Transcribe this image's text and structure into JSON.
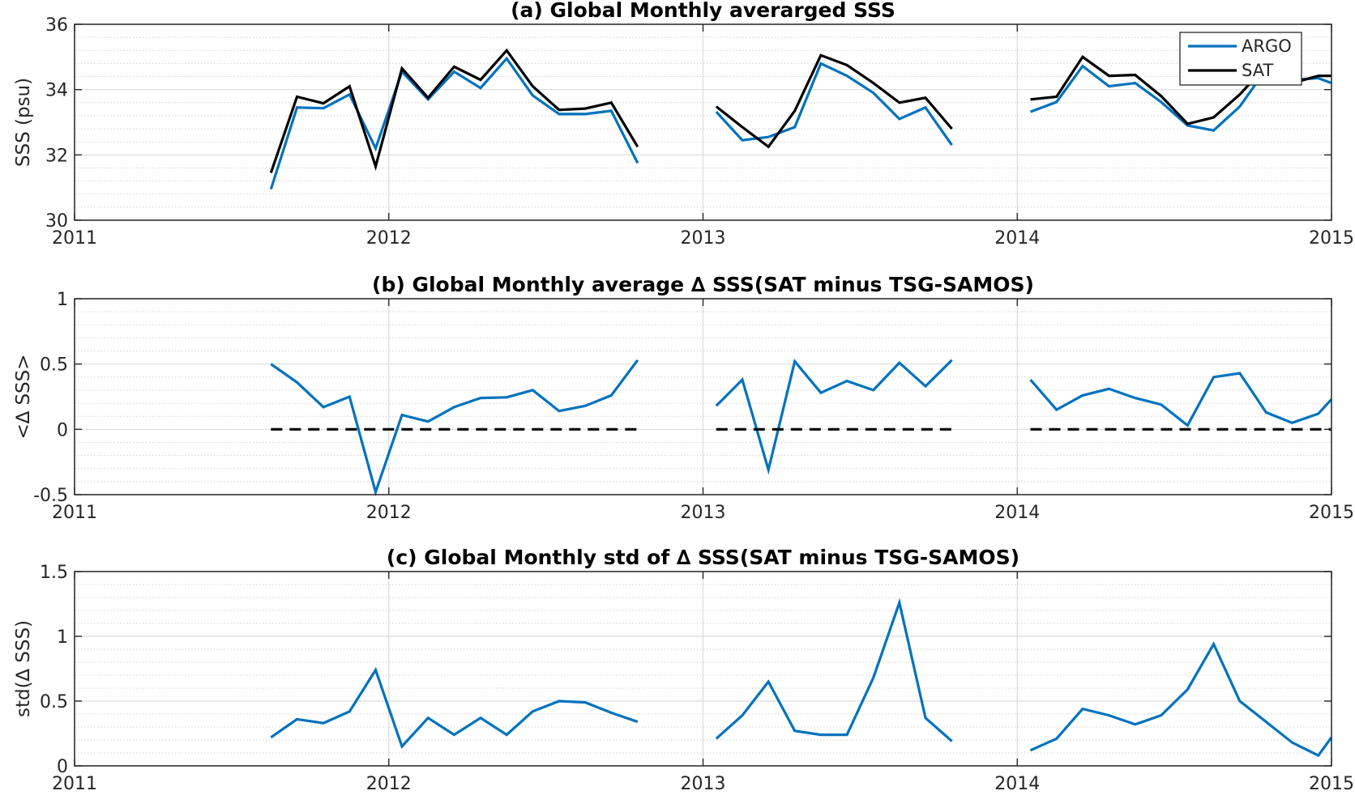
{
  "chart_data": [
    {
      "type": "line",
      "title": "(a) Global Monthly averarged SSS",
      "xlabel": "",
      "ylabel": "SSS (psu)",
      "xlim": [
        2011,
        2015
      ],
      "ylim": [
        30,
        36
      ],
      "xticks": [
        2011,
        2012,
        2013,
        2014,
        2015
      ],
      "xtick_labels": [
        "2011",
        "2012",
        "2013",
        "2014",
        "2015"
      ],
      "yticks": [
        30,
        32,
        34,
        36
      ],
      "ytick_labels": [
        "30",
        "32",
        "34",
        "36"
      ],
      "grid": true,
      "minor_grid": true,
      "legend": {
        "placement": "top-right",
        "entries": [
          "ARGO",
          "SAT"
        ]
      },
      "series": [
        {
          "name": "ARGO",
          "color": "#0072BD",
          "style": "solid",
          "segments": [
            [
              [
                2011.625,
                30.95
              ],
              [
                2011.708,
                33.45
              ],
              [
                2011.792,
                33.43
              ],
              [
                2011.875,
                33.85
              ],
              [
                2011.958,
                32.2
              ],
              [
                2012.042,
                34.55
              ],
              [
                2012.125,
                33.7
              ],
              [
                2012.208,
                34.55
              ],
              [
                2012.292,
                34.05
              ],
              [
                2012.375,
                34.95
              ],
              [
                2012.458,
                33.82
              ],
              [
                2012.542,
                33.25
              ],
              [
                2012.625,
                33.25
              ],
              [
                2012.708,
                33.35
              ],
              [
                2012.792,
                31.75
              ]
            ],
            [
              [
                2013.042,
                33.32
              ],
              [
                2013.125,
                32.45
              ],
              [
                2013.208,
                32.55
              ],
              [
                2013.292,
                32.85
              ],
              [
                2013.375,
                34.8
              ],
              [
                2013.458,
                34.42
              ],
              [
                2013.542,
                33.9
              ],
              [
                2013.625,
                33.1
              ],
              [
                2013.708,
                33.45
              ],
              [
                2013.792,
                32.3
              ]
            ],
            [
              [
                2014.042,
                33.32
              ],
              [
                2014.125,
                33.62
              ],
              [
                2014.208,
                34.72
              ],
              [
                2014.292,
                34.1
              ],
              [
                2014.375,
                34.2
              ],
              [
                2014.458,
                33.62
              ],
              [
                2014.542,
                32.9
              ],
              [
                2014.625,
                32.75
              ],
              [
                2014.708,
                33.48
              ],
              [
                2014.792,
                34.62
              ],
              [
                2014.875,
                34.3
              ],
              [
                2014.958,
                34.35
              ],
              [
                2015.0,
                34.2
              ]
            ]
          ]
        },
        {
          "name": "SAT",
          "color": "#000000",
          "style": "solid",
          "segments": [
            [
              [
                2011.625,
                31.45
              ],
              [
                2011.708,
                33.78
              ],
              [
                2011.792,
                33.58
              ],
              [
                2011.875,
                34.1
              ],
              [
                2011.958,
                31.65
              ],
              [
                2012.042,
                34.65
              ],
              [
                2012.125,
                33.75
              ],
              [
                2012.208,
                34.7
              ],
              [
                2012.292,
                34.3
              ],
              [
                2012.375,
                35.2
              ],
              [
                2012.458,
                34.1
              ],
              [
                2012.542,
                33.38
              ],
              [
                2012.625,
                33.42
              ],
              [
                2012.708,
                33.6
              ],
              [
                2012.792,
                32.25
              ]
            ],
            [
              [
                2013.042,
                33.48
              ],
              [
                2013.125,
                32.85
              ],
              [
                2013.208,
                32.25
              ],
              [
                2013.292,
                33.35
              ],
              [
                2013.375,
                35.05
              ],
              [
                2013.458,
                34.75
              ],
              [
                2013.542,
                34.2
              ],
              [
                2013.625,
                33.6
              ],
              [
                2013.708,
                33.75
              ],
              [
                2013.792,
                32.8
              ]
            ],
            [
              [
                2014.042,
                33.7
              ],
              [
                2014.125,
                33.78
              ],
              [
                2014.208,
                35.0
              ],
              [
                2014.292,
                34.42
              ],
              [
                2014.375,
                34.45
              ],
              [
                2014.458,
                33.8
              ],
              [
                2014.542,
                32.95
              ],
              [
                2014.625,
                33.15
              ],
              [
                2014.708,
                33.85
              ],
              [
                2014.792,
                34.72
              ],
              [
                2014.875,
                34.2
              ],
              [
                2014.958,
                34.42
              ],
              [
                2015.0,
                34.42
              ]
            ]
          ]
        }
      ]
    },
    {
      "type": "line",
      "title": "(b) Global Monthly average ∆ SSS(SAT minus TSG-SAMOS)",
      "xlabel": "",
      "ylabel": "<∆ SSS>",
      "xlim": [
        2011,
        2015
      ],
      "ylim": [
        -0.5,
        1
      ],
      "xticks": [
        2011,
        2012,
        2013,
        2014,
        2015
      ],
      "xtick_labels": [
        "2011",
        "2012",
        "2013",
        "2014",
        "2015"
      ],
      "yticks": [
        -0.5,
        0,
        0.5,
        1
      ],
      "ytick_labels": [
        "-0.5",
        "0",
        "0.5",
        "1"
      ],
      "grid": true,
      "minor_grid": true,
      "series": [
        {
          "color": "#0072BD",
          "style": "solid",
          "segments": [
            [
              [
                2011.625,
                0.5
              ],
              [
                2011.708,
                0.36
              ],
              [
                2011.792,
                0.17
              ],
              [
                2011.875,
                0.25
              ],
              [
                2011.958,
                -0.48
              ],
              [
                2012.042,
                0.11
              ],
              [
                2012.125,
                0.06
              ],
              [
                2012.208,
                0.17
              ],
              [
                2012.292,
                0.24
              ],
              [
                2012.375,
                0.245
              ],
              [
                2012.458,
                0.3
              ],
              [
                2012.542,
                0.14
              ],
              [
                2012.625,
                0.18
              ],
              [
                2012.708,
                0.26
              ],
              [
                2012.792,
                0.53
              ]
            ],
            [
              [
                2013.042,
                0.18
              ],
              [
                2013.125,
                0.38
              ],
              [
                2013.208,
                -0.31
              ],
              [
                2013.292,
                0.52
              ],
              [
                2013.375,
                0.28
              ],
              [
                2013.458,
                0.37
              ],
              [
                2013.542,
                0.3
              ],
              [
                2013.625,
                0.51
              ],
              [
                2013.708,
                0.33
              ],
              [
                2013.792,
                0.53
              ]
            ],
            [
              [
                2014.042,
                0.38
              ],
              [
                2014.125,
                0.15
              ],
              [
                2014.208,
                0.26
              ],
              [
                2014.292,
                0.31
              ],
              [
                2014.375,
                0.24
              ],
              [
                2014.458,
                0.19
              ],
              [
                2014.542,
                0.03
              ],
              [
                2014.625,
                0.4
              ],
              [
                2014.708,
                0.43
              ],
              [
                2014.792,
                0.13
              ],
              [
                2014.875,
                0.05
              ],
              [
                2014.958,
                0.12
              ],
              [
                2015.0,
                0.23
              ]
            ]
          ]
        },
        {
          "color": "#000000",
          "style": "dashed",
          "segments": [
            [
              [
                2011.625,
                0
              ],
              [
                2012.792,
                0
              ]
            ],
            [
              [
                2013.042,
                0
              ],
              [
                2013.792,
                0
              ]
            ],
            [
              [
                2014.042,
                0
              ],
              [
                2015.0,
                0
              ]
            ]
          ]
        }
      ]
    },
    {
      "type": "line",
      "title": "(c) Global Monthly std of ∆ SSS(SAT minus TSG-SAMOS)",
      "xlabel": "",
      "ylabel": "std(∆ SSS)",
      "xlim": [
        2011,
        2015
      ],
      "ylim": [
        0,
        1.5
      ],
      "xticks": [
        2011,
        2012,
        2013,
        2014,
        2015
      ],
      "xtick_labels": [
        "2011",
        "2012",
        "2013",
        "2014",
        "2015"
      ],
      "yticks": [
        0,
        0.5,
        1,
        1.5
      ],
      "ytick_labels": [
        "0",
        "0.5",
        "1",
        "1.5"
      ],
      "grid": true,
      "minor_grid": true,
      "series": [
        {
          "color": "#0072BD",
          "style": "solid",
          "segments": [
            [
              [
                2011.625,
                0.22
              ],
              [
                2011.708,
                0.36
              ],
              [
                2011.792,
                0.33
              ],
              [
                2011.875,
                0.42
              ],
              [
                2011.958,
                0.74
              ],
              [
                2012.042,
                0.15
              ],
              [
                2012.125,
                0.37
              ],
              [
                2012.208,
                0.24
              ],
              [
                2012.292,
                0.37
              ],
              [
                2012.375,
                0.24
              ],
              [
                2012.458,
                0.42
              ],
              [
                2012.542,
                0.5
              ],
              [
                2012.625,
                0.49
              ],
              [
                2012.708,
                0.41
              ],
              [
                2012.792,
                0.34
              ]
            ],
            [
              [
                2013.042,
                0.21
              ],
              [
                2013.125,
                0.39
              ],
              [
                2013.208,
                0.65
              ],
              [
                2013.292,
                0.27
              ],
              [
                2013.375,
                0.24
              ],
              [
                2013.458,
                0.24
              ],
              [
                2013.542,
                0.68
              ],
              [
                2013.625,
                1.26
              ],
              [
                2013.708,
                0.37
              ],
              [
                2013.792,
                0.19
              ]
            ],
            [
              [
                2014.042,
                0.12
              ],
              [
                2014.125,
                0.21
              ],
              [
                2014.208,
                0.44
              ],
              [
                2014.292,
                0.39
              ],
              [
                2014.375,
                0.32
              ],
              [
                2014.458,
                0.39
              ],
              [
                2014.542,
                0.59
              ],
              [
                2014.625,
                0.94
              ],
              [
                2014.708,
                0.5
              ],
              [
                2014.792,
                0.34
              ],
              [
                2014.875,
                0.18
              ],
              [
                2014.958,
                0.08
              ],
              [
                2015.0,
                0.22
              ]
            ]
          ]
        }
      ]
    }
  ]
}
